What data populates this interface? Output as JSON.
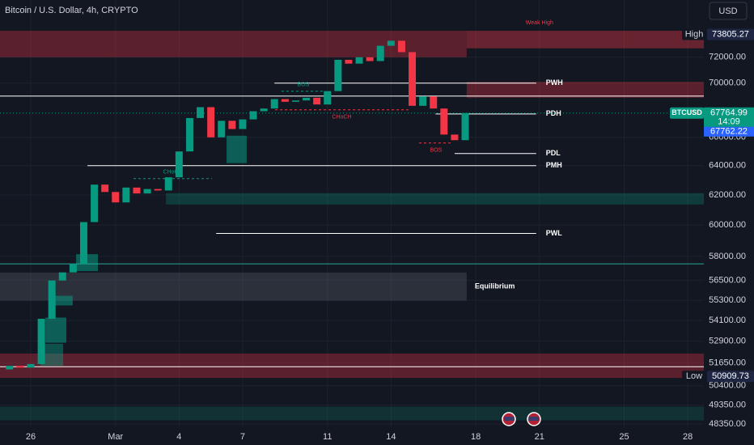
{
  "header": {
    "title": "Bitcoin / U.S. Dollar, 4h, CRYPTO",
    "currency": "USD"
  },
  "chart_data": {
    "type": "candlestick",
    "log_scale": true,
    "grid": true,
    "up_color": "#089981",
    "down_color": "#f23645",
    "x": [
      -1,
      -0.5,
      0,
      0.5,
      1,
      1.5,
      2,
      2.5,
      3,
      3.5,
      4,
      4.5,
      5,
      5.5,
      6,
      6.5,
      7,
      7.5,
      8,
      8.5,
      9,
      9.5,
      10,
      10.5,
      11,
      11.5,
      12,
      12.5,
      13,
      13.5,
      14,
      14.5,
      15,
      15.5,
      16,
      16.5,
      17,
      17.5,
      18,
      18.5,
      19,
      19.5,
      20,
      20.5
    ],
    "open": [
      51300,
      51500,
      51400,
      51600,
      54200,
      56500,
      57000,
      57500,
      60200,
      62700,
      62200,
      61500,
      62500,
      62100,
      62400,
      62300,
      63200,
      65000,
      67400,
      68200,
      66000,
      67200,
      66600,
      67300,
      67900,
      68100,
      68800,
      68600,
      68700,
      68900,
      68400,
      69400,
      71800,
      71500,
      72000,
      71700,
      72900,
      73300,
      72400,
      68300,
      69000,
      68100,
      66200,
      65800
    ],
    "high": {
      "label": "High",
      "value": 73805.27
    },
    "low": {
      "label": "Low",
      "value": 50909.73
    },
    "close": [
      51500,
      51400,
      51600,
      54200,
      56500,
      57000,
      57500,
      60200,
      62700,
      62200,
      61500,
      62500,
      62100,
      62400,
      62300,
      63200,
      65000,
      67400,
      68200,
      66000,
      67200,
      66600,
      67300,
      67900,
      68100,
      68800,
      68600,
      68700,
      68900,
      68400,
      69400,
      71800,
      71500,
      72000,
      71700,
      72900,
      73300,
      72400,
      68300,
      69000,
      68100,
      66200,
      65800,
      67764.99
    ],
    "xlim": [
      -1.45,
      31.76
    ],
    "xticks": [
      {
        "value": 0,
        "label": "26"
      },
      {
        "value": 4,
        "label": "Mar"
      },
      {
        "value": 7,
        "label": "4"
      },
      {
        "value": 10,
        "label": "7"
      },
      {
        "value": 14,
        "label": "11"
      },
      {
        "value": 17,
        "label": "14"
      },
      {
        "value": 21,
        "label": "18"
      },
      {
        "value": 24,
        "label": "21"
      },
      {
        "value": 28,
        "label": "25"
      },
      {
        "value": 31,
        "label": "28"
      }
    ],
    "ylim": [
      48180,
      75150
    ],
    "yticks": [
      {
        "value": 72000,
        "label": "72000.00"
      },
      {
        "value": 70000,
        "label": "70000.00"
      },
      {
        "value": 66000,
        "label": "66000.00"
      },
      {
        "value": 64000,
        "label": "64000.00"
      },
      {
        "value": 62000,
        "label": "62000.00"
      },
      {
        "value": 60000,
        "label": "60000.00"
      },
      {
        "value": 58000,
        "label": "58000.00"
      },
      {
        "value": 56500,
        "label": "56500.00"
      },
      {
        "value": 55300,
        "label": "55300.00"
      },
      {
        "value": 54100,
        "label": "54100.00"
      },
      {
        "value": 52900,
        "label": "52900.00"
      },
      {
        "value": 51650,
        "label": "51650.00"
      },
      {
        "value": 50400,
        "label": "50400.00"
      },
      {
        "value": 49350,
        "label": "49350.00"
      },
      {
        "value": 48350,
        "label": "48350.00"
      }
    ],
    "zones": [
      {
        "from": -1.45,
        "to": 20.57,
        "top": 74100,
        "bottom": 72000,
        "color": "rgba(242,54,69,0.32)"
      },
      {
        "from": 20.57,
        "to": 31.76,
        "top": 74100,
        "bottom": 72700,
        "color": "rgba(242,54,69,0.38)",
        "label": "Weak High"
      },
      {
        "from": 20.57,
        "to": 31.76,
        "top": 70100,
        "bottom": 68900,
        "color": "rgba(242,54,69,0.32)"
      },
      {
        "from": -1.45,
        "to": 20.57,
        "top": 56990,
        "bottom": 55280,
        "color": "rgba(120,123,134,0.25)",
        "label": "Equilibrium"
      },
      {
        "from": 6.38,
        "to": 31.76,
        "top": 62120,
        "bottom": 61360,
        "color": "rgba(8,153,129,0.28)"
      },
      {
        "from": -1.45,
        "to": 31.76,
        "top": 52190,
        "bottom": 50830,
        "color": "rgba(242,54,69,0.32)"
      },
      {
        "from": -1.45,
        "to": 31.76,
        "top": 49270,
        "bottom": 48540,
        "color": "rgba(8,153,129,0.2)"
      },
      {
        "from": 9.24,
        "to": 10.19,
        "top": 66120,
        "bottom": 64180,
        "color": "rgba(8,153,129,0.55)"
      },
      {
        "from": 2.14,
        "to": 3.17,
        "top": 58140,
        "bottom": 57080,
        "color": "rgba(8,153,129,0.55)"
      },
      {
        "from": 1.03,
        "to": 1.98,
        "top": 55570,
        "bottom": 54990,
        "color": "rgba(8,153,129,0.55)"
      },
      {
        "from": 0.69,
        "to": 1.68,
        "top": 54270,
        "bottom": 52810,
        "color": "rgba(8,153,129,0.55)"
      },
      {
        "from": 0.46,
        "to": 1.53,
        "top": 52750,
        "bottom": 51500,
        "color": "rgba(8,153,129,0.45)"
      }
    ],
    "levels": [
      {
        "label": "PWH",
        "value": 70000,
        "from": 11.5,
        "to": 23.85
      },
      {
        "label": "PDH",
        "value": 67700,
        "from": 19.1,
        "to": 23.85
      },
      {
        "label": "PDL",
        "value": 64850,
        "from": 20.0,
        "to": 23.85
      },
      {
        "label": "PMH",
        "value": 64000,
        "from": 2.68,
        "to": 23.85
      },
      {
        "label": "PWL",
        "value": 59460,
        "from": 8.75,
        "to": 23.85
      }
    ],
    "lines": [
      {
        "value": 69025,
        "color": "#ffffff"
      },
      {
        "value": 51450,
        "color": "#ffffff"
      },
      {
        "value": 57530,
        "color": "#26a69a"
      }
    ],
    "structure": [
      {
        "label": "BOS",
        "value": 69390,
        "from": 11.83,
        "to": 13.89,
        "color": "#089981"
      },
      {
        "label": "CHoCH",
        "value": 63110,
        "from": 4.85,
        "to": 8.55,
        "color": "#089981"
      },
      {
        "label": "CHoCH",
        "value": 68000,
        "from": 11.53,
        "to": 17.82,
        "color": "#f23645"
      },
      {
        "label": "BOS",
        "value": 65600,
        "from": 18.32,
        "to": 19.92,
        "color": "#f23645"
      }
    ],
    "last": {
      "symbol": "BTCUSD",
      "value": 67764.99,
      "countdown": "14:09",
      "bid": 67762.22
    }
  }
}
